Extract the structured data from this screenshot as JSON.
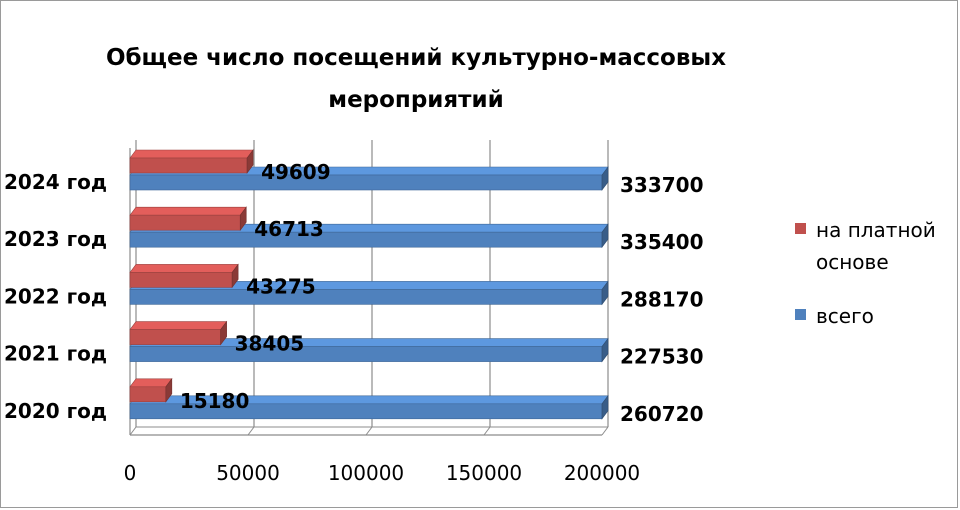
{
  "chart_data": {
    "type": "bar",
    "orientation": "horizontal",
    "style": "3d",
    "title": "Общее число посещений культурно-массовых мероприятий",
    "categories": [
      "2020 год",
      "2021 год",
      "2022 год",
      "2023 год",
      "2024 год"
    ],
    "series": [
      {
        "name": "на платной основе",
        "color": "#c0504d",
        "values": [
          15180,
          38405,
          43275,
          46713,
          49609
        ]
      },
      {
        "name": "всего",
        "color": "#4f81bd",
        "values": [
          260720,
          227530,
          288170,
          335400,
          333700
        ]
      }
    ],
    "xlim": [
      0,
      200000
    ],
    "x_ticks": [
      "0",
      "50000",
      "100000",
      "150000",
      "200000"
    ],
    "grid": true,
    "legend_position": "right"
  }
}
